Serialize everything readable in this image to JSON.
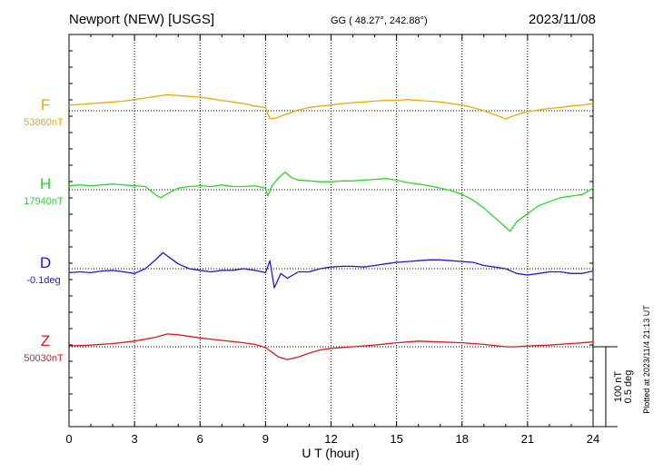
{
  "header": {
    "station": "Newport (NEW)  [USGS]",
    "coords": "GG ( 48.27°, 242.88°)",
    "date": "2023/11/08"
  },
  "footer": {
    "plotted": "Plotted at 2023/11/4 21:13 UT"
  },
  "scale_bar": {
    "nt": "100 nT",
    "deg": "0.5 deg"
  },
  "chart_data": {
    "type": "line",
    "xlabel": "U T (hour)",
    "xlim": [
      0,
      24
    ],
    "xticks": [
      "0",
      "3",
      "6",
      "9",
      "12",
      "15",
      "18",
      "21",
      "24"
    ],
    "grid": true,
    "series": [
      {
        "name": "F",
        "baseline_label": "53860nT",
        "unit": "nT",
        "baseline": 53860,
        "color": "#f0a800",
        "x": [
          0,
          0.5,
          1,
          1.5,
          2,
          2.5,
          3,
          3.5,
          4,
          4.5,
          5,
          5.5,
          6,
          6.5,
          7,
          7.5,
          8,
          8.5,
          9,
          9.2,
          9.5,
          10,
          10.5,
          11,
          11.5,
          12,
          12.5,
          13,
          13.5,
          14,
          14.5,
          15,
          15.5,
          16,
          16.5,
          17,
          17.5,
          18,
          18.5,
          19,
          19.5,
          20,
          20.5,
          21,
          21.5,
          22,
          22.5,
          23,
          23.5,
          24
        ],
        "y": [
          53867,
          53868,
          53869,
          53870,
          53871,
          53872,
          53874,
          53876,
          53878,
          53880,
          53879,
          53878,
          53877,
          53875,
          53873,
          53871,
          53869,
          53866,
          53864,
          53850,
          53851,
          53856,
          53861,
          53864,
          53866,
          53867,
          53869,
          53870,
          53871,
          53872,
          53873,
          53873,
          53874,
          53873,
          53872,
          53871,
          53869,
          53867,
          53864,
          53860,
          53855,
          53850,
          53855,
          53859,
          53861,
          53863,
          53864,
          53866,
          53867,
          53869
        ]
      },
      {
        "name": "H",
        "baseline_label": "17940nT",
        "unit": "nT",
        "baseline": 17940,
        "color": "#22dd22",
        "x": [
          0,
          0.5,
          1,
          1.5,
          2,
          2.5,
          3,
          3.5,
          4,
          4.2,
          4.5,
          5,
          5.5,
          6,
          6.5,
          7,
          7.5,
          8,
          8.5,
          9,
          9.1,
          9.3,
          9.6,
          9.9,
          10.2,
          10.5,
          11,
          11.5,
          12,
          12.5,
          13,
          13.5,
          14,
          14.5,
          15,
          15.5,
          16,
          16.5,
          17,
          17.5,
          18,
          18.5,
          19,
          19.5,
          20,
          20.2,
          20.5,
          21,
          21.5,
          22,
          22.5,
          23,
          23.5,
          24
        ],
        "y": [
          17945,
          17946,
          17945,
          17946,
          17947,
          17946,
          17945,
          17944,
          17933,
          17930,
          17935,
          17942,
          17944,
          17945,
          17944,
          17946,
          17944,
          17944,
          17945,
          17942,
          17932,
          17945,
          17955,
          17962,
          17955,
          17952,
          17951,
          17950,
          17950,
          17951,
          17951,
          17952,
          17953,
          17954,
          17952,
          17949,
          17947,
          17945,
          17942,
          17939,
          17934,
          17927,
          17917,
          17905,
          17893,
          17888,
          17900,
          17910,
          17920,
          17925,
          17930,
          17932,
          17934,
          17942
        ]
      },
      {
        "name": "D",
        "baseline_label": "-0.1deg",
        "unit": "deg",
        "baseline": -0.1,
        "color": "#1a1adc",
        "x": [
          0,
          0.5,
          1,
          1.5,
          2,
          2.5,
          3,
          3.5,
          4,
          4.3,
          4.6,
          5,
          5.5,
          6,
          6.5,
          7,
          7.5,
          8,
          8.5,
          9,
          9.2,
          9.4,
          9.7,
          10,
          10.5,
          11,
          11.5,
          12,
          12.5,
          13,
          13.5,
          14,
          14.5,
          15,
          15.5,
          16,
          16.5,
          17,
          17.5,
          18,
          18.5,
          19,
          19.5,
          20,
          20.5,
          21,
          21.5,
          22,
          22.5,
          23,
          23.5,
          24
        ],
        "y": [
          -0.125,
          -0.12,
          -0.125,
          -0.115,
          -0.11,
          -0.12,
          -0.13,
          -0.1,
          -0.04,
          0.0,
          -0.03,
          -0.07,
          -0.1,
          -0.11,
          -0.12,
          -0.11,
          -0.11,
          -0.1,
          -0.11,
          -0.125,
          -0.05,
          -0.22,
          -0.13,
          -0.16,
          -0.12,
          -0.12,
          -0.1,
          -0.09,
          -0.085,
          -0.085,
          -0.09,
          -0.08,
          -0.07,
          -0.06,
          -0.055,
          -0.05,
          -0.045,
          -0.045,
          -0.05,
          -0.055,
          -0.06,
          -0.08,
          -0.09,
          -0.1,
          -0.13,
          -0.14,
          -0.13,
          -0.12,
          -0.12,
          -0.13,
          -0.13,
          -0.115
        ]
      },
      {
        "name": "Z",
        "baseline_label": "50030nT",
        "unit": "nT",
        "baseline": 50030,
        "color": "#e01a1a",
        "x": [
          0,
          1,
          2,
          3,
          4,
          4.5,
          5,
          6,
          7,
          8,
          8.5,
          9,
          9.3,
          9.6,
          10,
          10.5,
          11,
          11.5,
          12,
          13,
          14,
          15,
          16,
          17,
          18,
          19,
          20,
          20.5,
          21,
          22,
          23,
          24
        ],
        "y": [
          50031,
          50032,
          50034,
          50037,
          50042,
          50046,
          50045,
          50041,
          50038,
          50035,
          50033,
          50029,
          50023,
          50017,
          50014,
          50017,
          50022,
          50026,
          50028,
          50030,
          50032,
          50035,
          50037,
          50036,
          50035,
          50033,
          50030,
          50030,
          50031,
          50032,
          50034,
          50036
        ]
      }
    ]
  }
}
